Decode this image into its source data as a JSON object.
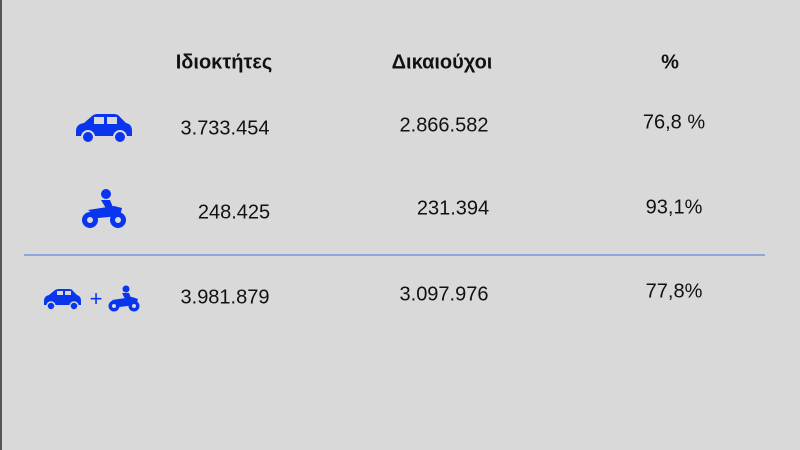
{
  "table": {
    "header": [
      "Ιδιοκτήτες",
      "Δικαιούχοι",
      "%"
    ],
    "rows": [
      [
        "3.733.454",
        "2.866.582",
        "76,8 %"
      ],
      [
        "248.425",
        "231.394",
        "93,1%"
      ],
      [
        "3.981.879",
        "3.097.976",
        "77,8%"
      ]
    ],
    "combined_sign": "+"
  }
}
